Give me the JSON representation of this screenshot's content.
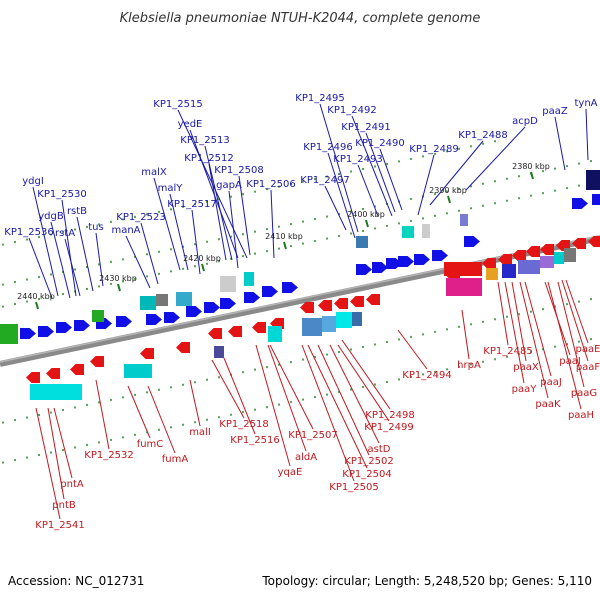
{
  "title": "Klebsiella pneumoniae NTUH-K2044, complete genome",
  "footer": {
    "accession": "Accession: NC_012731",
    "summary": "Topology: circular; Length: 5,248,520 bp; Genes: 5,110"
  },
  "colors": {
    "top_labels": "#1a1aa6",
    "bottom_labels": "#c0191f",
    "backbone": "#808080",
    "tick_marks": "#2e8b2e"
  },
  "scale_labels": [
    "2380 kbp",
    "2390 kbp",
    "2400 kbp",
    "2410 kbp",
    "2420 kbp",
    "2430 kbp",
    "2440 kbp"
  ],
  "top_labels": [
    "tynA",
    "paaZ",
    "acpD",
    "KP1_2488",
    "KP1_2489",
    "KP1_2490",
    "KP1_2491",
    "KP1_2492",
    "KP1_2493",
    "KP1_2495",
    "KP1_2496",
    "KP1_2497",
    "KP1_2515",
    "yedE",
    "KP1_2513",
    "KP1_2512",
    "KP1_2508",
    "malX",
    "malY",
    "gapA",
    "KP1_2506",
    "KP1_2517",
    "KP1_2523",
    "manA",
    "ydgI",
    "KP1_2530",
    "rstB",
    "ydgB",
    "rstA",
    "tus",
    "KP1_2536"
  ],
  "bottom_labels": [
    "paaE",
    "paaF",
    "paaI",
    "paaG",
    "paaH",
    "KP1_2485",
    "paaX",
    "paaJ",
    "paaY",
    "paaK",
    "hrpA",
    "KP1_2494",
    "KP1_2498",
    "KP1_2499",
    "astD",
    "KP1_2502",
    "KP1_2504",
    "KP1_2505",
    "KP1_2507",
    "aldA",
    "yqaE",
    "KP1_2518",
    "KP1_2516",
    "malI",
    "fumC",
    "fumA",
    "KP1_2532",
    "pntA",
    "pntB",
    "KP1_2541"
  ]
}
